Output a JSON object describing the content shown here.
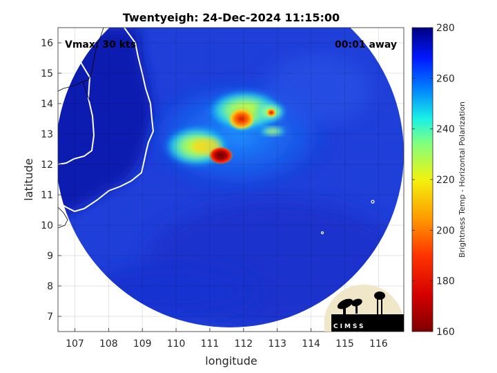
{
  "chart_data": {
    "type": "heatmap",
    "title": "Twentyeigh: 24-Dec-2024 11:15:00",
    "xlabel": "longitude",
    "ylabel": "latitude",
    "xlim": [
      106.5,
      116.75
    ],
    "ylim": [
      6.5,
      16.5
    ],
    "x_ticks": [
      107,
      108,
      109,
      110,
      111,
      112,
      113,
      114,
      115,
      116
    ],
    "y_ticks": [
      7,
      8,
      9,
      10,
      11,
      12,
      13,
      14,
      15,
      16
    ],
    "grid": true,
    "colorbar": {
      "label": "Brightness Temp - Horizontal Polarization",
      "range": [
        160,
        280
      ],
      "ticks": [
        160,
        180,
        200,
        220,
        240,
        260,
        280
      ],
      "colormap": "jet"
    },
    "annotations": {
      "vmax": "Vmax: 30 kts",
      "away": "00:01 away"
    },
    "features": [
      {
        "lon": 111.3,
        "lat": 12.15,
        "value": 165
      },
      {
        "lon": 112.0,
        "lat": 13.25,
        "value": 185
      },
      {
        "lon": 112.7,
        "lat": 13.6,
        "value": 200
      },
      {
        "lon": 110.6,
        "lat": 12.5,
        "value": 225
      }
    ]
  },
  "logo": {
    "text": "CIMSS"
  }
}
